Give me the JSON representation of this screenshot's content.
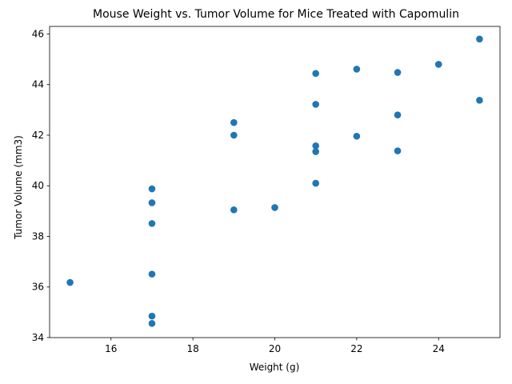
{
  "chart_data": {
    "type": "scatter",
    "title": "Mouse Weight vs. Tumor Volume for Mice Treated with Capomulin",
    "xlabel": "Weight (g)",
    "ylabel": "Tumor Volume (mm3)",
    "xlim": [
      14.5,
      25.5
    ],
    "ylim": [
      34,
      46.3
    ],
    "xticks": [
      16,
      18,
      20,
      22,
      24
    ],
    "yticks": [
      34,
      36,
      38,
      40,
      42,
      44,
      46
    ],
    "grid": false,
    "legend": "none",
    "marker_color": "#1f77b4",
    "points": [
      {
        "x": 15,
        "y": 36.18
      },
      {
        "x": 17,
        "y": 34.56
      },
      {
        "x": 17,
        "y": 34.85
      },
      {
        "x": 17,
        "y": 36.51
      },
      {
        "x": 17,
        "y": 38.51
      },
      {
        "x": 17,
        "y": 39.33
      },
      {
        "x": 17,
        "y": 39.88
      },
      {
        "x": 19,
        "y": 39.05
      },
      {
        "x": 19,
        "y": 42.0
      },
      {
        "x": 19,
        "y": 42.5
      },
      {
        "x": 20,
        "y": 39.14
      },
      {
        "x": 21,
        "y": 40.1
      },
      {
        "x": 21,
        "y": 41.35
      },
      {
        "x": 21,
        "y": 41.58
      },
      {
        "x": 21,
        "y": 43.22
      },
      {
        "x": 21,
        "y": 44.44
      },
      {
        "x": 22,
        "y": 41.96
      },
      {
        "x": 22,
        "y": 44.61
      },
      {
        "x": 23,
        "y": 41.38
      },
      {
        "x": 23,
        "y": 42.8
      },
      {
        "x": 23,
        "y": 44.48
      },
      {
        "x": 24,
        "y": 44.8
      },
      {
        "x": 25,
        "y": 43.38
      },
      {
        "x": 25,
        "y": 45.8
      }
    ]
  }
}
